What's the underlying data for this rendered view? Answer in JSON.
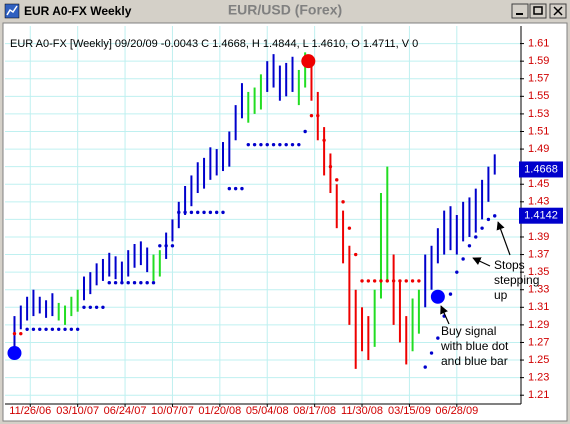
{
  "window": {
    "title": "EUR A0-FX Weekly"
  },
  "chart_data": {
    "type": "hilo",
    "title": "EUR/USD (Forex)",
    "header": "EUR A0-FX [Weekly] 09/20/09 -0.0043 C 1.4668, H 1.4844, L 1.4610, O 1.4711, V 0",
    "xlim": [
      -3,
      160
    ],
    "xticks": [
      {
        "value": 5,
        "label": "11/26/06"
      },
      {
        "value": 20,
        "label": "03/10/07"
      },
      {
        "value": 35,
        "label": "06/24/07"
      },
      {
        "value": 50,
        "label": "10/07/07"
      },
      {
        "value": 65,
        "label": "01/20/08"
      },
      {
        "value": 80,
        "label": "05/04/08"
      },
      {
        "value": 95,
        "label": "08/17/08"
      },
      {
        "value": 110,
        "label": "11/30/08"
      },
      {
        "value": 125,
        "label": "03/15/09"
      },
      {
        "value": 140,
        "label": "06/28/09"
      }
    ],
    "ylim": [
      1.2,
      1.63
    ],
    "yticks": [
      1.21,
      1.23,
      1.25,
      1.27,
      1.29,
      1.31,
      1.33,
      1.35,
      1.37,
      1.39,
      1.41,
      1.43,
      1.45,
      1.47,
      1.49,
      1.51,
      1.53,
      1.55,
      1.57,
      1.59,
      1.61
    ],
    "grid": true,
    "series": [
      {
        "color": "#0000cc",
        "x": [
          0,
          2,
          4,
          6,
          8,
          10,
          12,
          22,
          24,
          26,
          28,
          30,
          32,
          34,
          36,
          38,
          40,
          42,
          48,
          50,
          52,
          54,
          56,
          58,
          60,
          62,
          64,
          66,
          68,
          70,
          72,
          80,
          82,
          84,
          86,
          88,
          130,
          132,
          134,
          136,
          138,
          140,
          142,
          144,
          146,
          148,
          150,
          152
        ],
        "high": [
          1.3,
          1.312,
          1.322,
          1.33,
          1.322,
          1.318,
          1.326,
          1.345,
          1.35,
          1.36,
          1.365,
          1.372,
          1.368,
          1.362,
          1.375,
          1.382,
          1.385,
          1.378,
          1.395,
          1.41,
          1.43,
          1.448,
          1.46,
          1.475,
          1.48,
          1.492,
          1.49,
          1.498,
          1.51,
          1.54,
          1.565,
          1.59,
          1.598,
          1.585,
          1.588,
          1.595,
          1.37,
          1.38,
          1.4,
          1.42,
          1.425,
          1.415,
          1.43,
          1.435,
          1.445,
          1.455,
          1.47,
          1.484
        ],
        "low": [
          1.262,
          1.285,
          1.295,
          1.3,
          1.303,
          1.298,
          1.3,
          1.318,
          1.325,
          1.335,
          1.34,
          1.345,
          1.342,
          1.338,
          1.345,
          1.355,
          1.358,
          1.35,
          1.365,
          1.385,
          1.4,
          1.415,
          1.425,
          1.44,
          1.445,
          1.455,
          1.46,
          1.465,
          1.47,
          1.5,
          1.525,
          1.555,
          1.56,
          1.545,
          1.55,
          1.555,
          1.31,
          1.33,
          1.36,
          1.37,
          1.375,
          1.37,
          1.385,
          1.39,
          1.395,
          1.41,
          1.43,
          1.461
        ]
      },
      {
        "color": "#22dd22",
        "x": [
          14,
          16,
          18,
          20,
          44,
          46,
          74,
          76,
          78,
          90,
          92,
          114,
          116,
          118,
          126,
          128
        ],
        "high": [
          1.315,
          1.312,
          1.322,
          1.33,
          1.37,
          1.375,
          1.555,
          1.56,
          1.575,
          1.58,
          1.6,
          1.33,
          1.44,
          1.47,
          1.32,
          1.33
        ],
        "low": [
          1.295,
          1.29,
          1.3,
          1.305,
          1.34,
          1.345,
          1.52,
          1.53,
          1.535,
          1.54,
          1.56,
          1.265,
          1.32,
          1.34,
          1.26,
          1.28
        ]
      },
      {
        "color": "#ee0000",
        "x": [
          94,
          96,
          98,
          100,
          102,
          104,
          106,
          108,
          110,
          112,
          120,
          122,
          124
        ],
        "high": [
          1.595,
          1.555,
          1.515,
          1.485,
          1.45,
          1.42,
          1.38,
          1.33,
          1.31,
          1.3,
          1.37,
          1.34,
          1.3
        ],
        "low": [
          1.545,
          1.5,
          1.46,
          1.44,
          1.4,
          1.36,
          1.29,
          1.24,
          1.26,
          1.25,
          1.29,
          1.27,
          1.245
        ]
      }
    ],
    "stops": [
      {
        "color": "#0000cc",
        "x": [
          4,
          6,
          8,
          10,
          12,
          14,
          16,
          18,
          20,
          22,
          24,
          26,
          28,
          30,
          32,
          34,
          36,
          38,
          40,
          42,
          44,
          46,
          48,
          50,
          52,
          54,
          56,
          58,
          60,
          62,
          64,
          66,
          68,
          70,
          72,
          74,
          76,
          78,
          80,
          82,
          84,
          86,
          88,
          90,
          92,
          130,
          132,
          134,
          136,
          138,
          140,
          142,
          144,
          146,
          148,
          150,
          152
        ],
        "values": [
          1.285,
          1.285,
          1.285,
          1.285,
          1.285,
          1.285,
          1.285,
          1.285,
          1.285,
          1.31,
          1.31,
          1.31,
          1.31,
          1.338,
          1.338,
          1.338,
          1.338,
          1.338,
          1.338,
          1.338,
          1.338,
          1.38,
          1.38,
          1.38,
          1.418,
          1.418,
          1.418,
          1.418,
          1.418,
          1.418,
          1.418,
          1.418,
          1.445,
          1.445,
          1.445,
          1.495,
          1.495,
          1.495,
          1.495,
          1.495,
          1.495,
          1.495,
          1.495,
          1.495,
          1.51,
          1.242,
          1.258,
          1.275,
          1.3,
          1.325,
          1.35,
          1.365,
          1.38,
          1.39,
          1.4,
          1.41,
          1.414
        ]
      },
      {
        "color": "#ee0000",
        "x": [
          0,
          2,
          94,
          96,
          98,
          100,
          102,
          104,
          106,
          108,
          110,
          112,
          114,
          116,
          118,
          120,
          122,
          124,
          126,
          128
        ],
        "values": [
          1.28,
          1.28,
          1.528,
          1.528,
          1.5,
          1.47,
          1.455,
          1.43,
          1.4,
          1.37,
          1.34,
          1.34,
          1.34,
          1.34,
          1.34,
          1.34,
          1.34,
          1.34,
          1.34,
          1.34
        ]
      }
    ],
    "signals": [
      {
        "color": "#0000ff",
        "x": [
          0,
          134
        ],
        "values": [
          1.258,
          1.322
        ]
      },
      {
        "color": "#ee0000",
        "x": [
          93
        ],
        "values": [
          1.59
        ]
      }
    ],
    "price_labels": [
      1.4668,
      1.4142
    ],
    "price_label_color": "#0000cc",
    "annotations": [
      {
        "lines": [
          "Stops",
          "stepping",
          "up"
        ]
      },
      {
        "lines": [
          "Buy signal",
          "with blue dot",
          "and blue bar"
        ]
      }
    ]
  }
}
